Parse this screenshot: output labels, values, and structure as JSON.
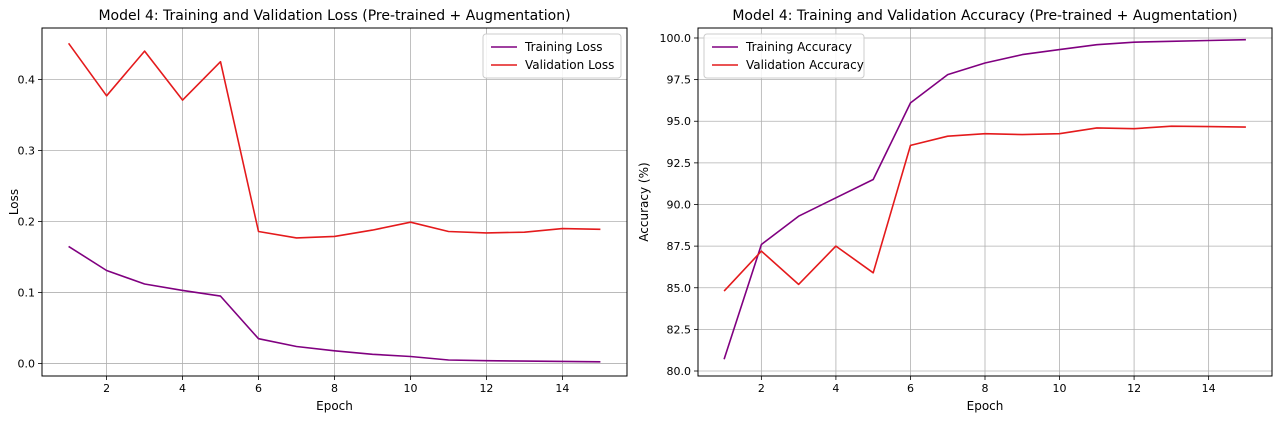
{
  "chart_data": [
    {
      "type": "line",
      "title": "Model 4: Training and Validation Loss (Pre-trained + Augmentation)",
      "xlabel": "Epoch",
      "ylabel": "Loss",
      "x": [
        1,
        2,
        3,
        4,
        5,
        6,
        7,
        8,
        9,
        10,
        11,
        12,
        13,
        14,
        15
      ],
      "xlim": [
        0.3,
        15.7
      ],
      "ylim": [
        -0.0175,
        0.4725
      ],
      "xticks": [
        2,
        4,
        6,
        8,
        10,
        12,
        14
      ],
      "xtick_labels": [
        "2",
        "4",
        "6",
        "8",
        "10",
        "12",
        "14"
      ],
      "yticks": [
        0.0,
        0.1,
        0.2,
        0.3,
        0.4
      ],
      "ytick_labels": [
        "0.0",
        "0.1",
        "0.2",
        "0.3",
        "0.4"
      ],
      "grid": true,
      "legend_position": "top-right",
      "series": [
        {
          "name": "Training Loss",
          "color": "#800080",
          "values": [
            0.165,
            0.131,
            0.112,
            0.103,
            0.095,
            0.035,
            0.024,
            0.018,
            0.013,
            0.01,
            0.005,
            0.004,
            0.0035,
            0.003,
            0.0025
          ]
        },
        {
          "name": "Validation Loss",
          "color": "#e41a1c",
          "values": [
            0.451,
            0.377,
            0.44,
            0.371,
            0.425,
            0.186,
            0.177,
            0.179,
            0.188,
            0.199,
            0.186,
            0.184,
            0.185,
            0.19,
            0.189
          ]
        }
      ]
    },
    {
      "type": "line",
      "title": "Model 4: Training and Validation Accuracy (Pre-trained + Augmentation)",
      "xlabel": "Epoch",
      "ylabel": "Accuracy (%)",
      "x": [
        1,
        2,
        3,
        4,
        5,
        6,
        7,
        8,
        9,
        10,
        11,
        12,
        13,
        14,
        15
      ],
      "xlim": [
        0.3,
        15.7
      ],
      "ylim": [
        79.7,
        100.6
      ],
      "xticks": [
        2,
        4,
        6,
        8,
        10,
        12,
        14
      ],
      "xtick_labels": [
        "2",
        "4",
        "6",
        "8",
        "10",
        "12",
        "14"
      ],
      "yticks": [
        80.0,
        82.5,
        85.0,
        87.5,
        90.0,
        92.5,
        95.0,
        97.5,
        100.0
      ],
      "ytick_labels": [
        "80.0",
        "82.5",
        "85.0",
        "87.5",
        "90.0",
        "92.5",
        "95.0",
        "97.5",
        "100.0"
      ],
      "grid": true,
      "legend_position": "top-left",
      "series": [
        {
          "name": "Training Accuracy",
          "color": "#800080",
          "values": [
            80.7,
            87.6,
            89.3,
            90.4,
            91.5,
            96.1,
            97.8,
            98.5,
            99.0,
            99.3,
            99.6,
            99.75,
            99.8,
            99.85,
            99.9
          ]
        },
        {
          "name": "Validation Accuracy",
          "color": "#e41a1c",
          "values": [
            84.8,
            87.2,
            85.2,
            87.5,
            85.9,
            93.55,
            94.1,
            94.25,
            94.2,
            94.25,
            94.6,
            94.55,
            94.7,
            94.68,
            94.65
          ]
        }
      ]
    }
  ]
}
